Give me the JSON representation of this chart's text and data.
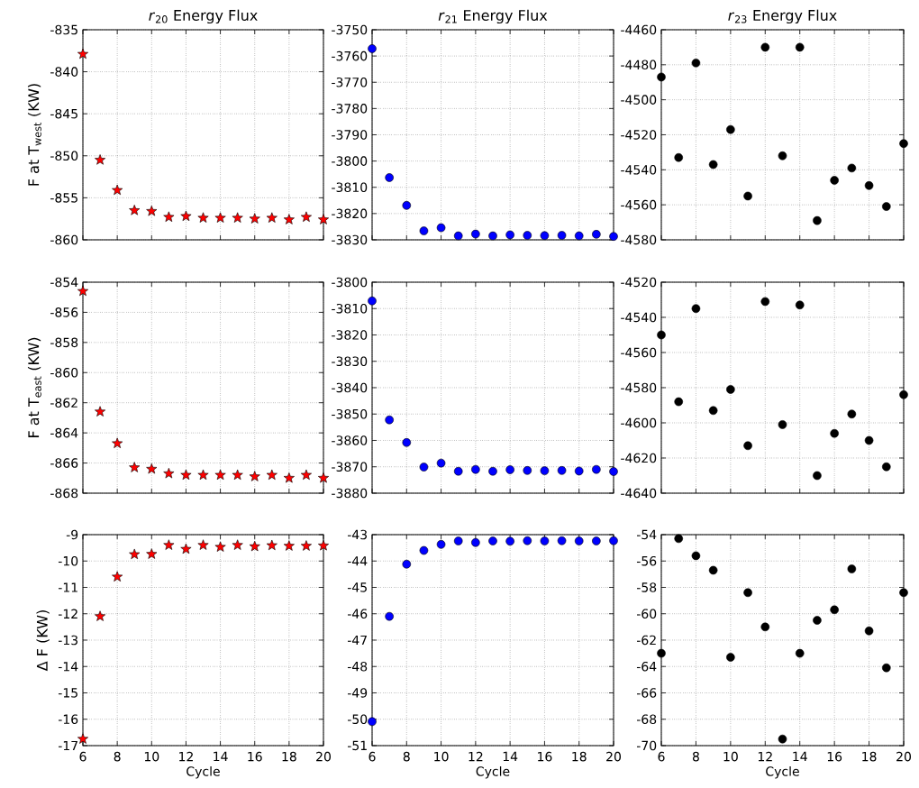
{
  "chart_data": [
    {
      "type": "scatter",
      "title": "*r*$_{20}$ Energy Flux",
      "ylabel": "F at T$_{west}$ (KW)",
      "x": [
        6,
        7,
        8,
        9,
        10,
        11,
        12,
        13,
        14,
        15,
        16,
        17,
        18,
        19,
        20
      ],
      "values": [
        -837.9,
        -850.5,
        -854.1,
        -856.5,
        -856.6,
        -857.3,
        -857.2,
        -857.4,
        -857.4,
        -857.4,
        -857.5,
        -857.4,
        -857.6,
        -857.3,
        -857.6
      ],
      "color": "#ff0000",
      "marker": "star",
      "xlim": [
        6,
        20
      ],
      "xticks": [
        6,
        8,
        10,
        12,
        14,
        16,
        18,
        20
      ],
      "ylim": [
        -860,
        -835
      ],
      "yticks": [
        -860,
        -855,
        -850,
        -845,
        -840,
        -835
      ],
      "grid": true,
      "tick_labels": "y"
    },
    {
      "type": "scatter",
      "title": "*r*$_{21}$ Energy Flux",
      "x": [
        6,
        7,
        8,
        9,
        10,
        11,
        12,
        13,
        14,
        15,
        16,
        17,
        18,
        19,
        20
      ],
      "values": [
        -3757.2,
        -3806.3,
        -3816.9,
        -3826.6,
        -3825.4,
        -3828.5,
        -3827.8,
        -3828.5,
        -3828.1,
        -3828.3,
        -3828.4,
        -3828.3,
        -3828.5,
        -3827.9,
        -3828.7
      ],
      "color": "#0000ff",
      "marker": "circle",
      "xlim": [
        6,
        20
      ],
      "xticks": [
        6,
        8,
        10,
        12,
        14,
        16,
        18,
        20
      ],
      "ylim": [
        -3830,
        -3750
      ],
      "yticks": [
        -3830,
        -3820,
        -3810,
        -3800,
        -3790,
        -3780,
        -3770,
        -3760,
        -3750
      ],
      "grid": true,
      "tick_labels": "y"
    },
    {
      "type": "scatter",
      "title": "*r*$_{23}$ Energy Flux",
      "x": [
        6,
        7,
        8,
        9,
        10,
        11,
        12,
        13,
        14,
        15,
        16,
        17,
        18,
        19,
        20
      ],
      "values": [
        -4487,
        -4533,
        -4479,
        -4537,
        -4517,
        -4555,
        -4470,
        -4532,
        -4470,
        -4569,
        -4546,
        -4539,
        -4549,
        -4561,
        -4525
      ],
      "color": "#000000",
      "marker": "circle",
      "xlim": [
        6,
        20
      ],
      "xticks": [
        6,
        8,
        10,
        12,
        14,
        16,
        18,
        20
      ],
      "ylim": [
        -4580,
        -4460
      ],
      "yticks": [
        -4580,
        -4560,
        -4540,
        -4520,
        -4500,
        -4480,
        -4460
      ],
      "grid": true,
      "tick_labels": "y"
    },
    {
      "type": "scatter",
      "ylabel": "F at T$_{east}$ (KW)",
      "x": [
        6,
        7,
        8,
        9,
        10,
        11,
        12,
        13,
        14,
        15,
        16,
        17,
        18,
        19,
        20
      ],
      "values": [
        -854.6,
        -862.6,
        -864.7,
        -866.3,
        -866.4,
        -866.7,
        -866.8,
        -866.8,
        -866.8,
        -866.8,
        -866.9,
        -866.8,
        -867.0,
        -866.8,
        -867.0
      ],
      "color": "#ff0000",
      "marker": "star",
      "xlim": [
        6,
        20
      ],
      "xticks": [
        6,
        8,
        10,
        12,
        14,
        16,
        18,
        20
      ],
      "ylim": [
        -868,
        -854
      ],
      "yticks": [
        -868,
        -866,
        -864,
        -862,
        -860,
        -858,
        -856,
        -854
      ],
      "grid": true,
      "tick_labels": "y"
    },
    {
      "type": "scatter",
      "x": [
        6,
        7,
        8,
        9,
        10,
        11,
        12,
        13,
        14,
        15,
        16,
        17,
        18,
        19,
        20
      ],
      "values": [
        -3807.1,
        -3852.2,
        -3860.8,
        -3870.1,
        -3868.6,
        -3871.7,
        -3871.0,
        -3871.7,
        -3871.1,
        -3871.4,
        -3871.5,
        -3871.4,
        -3871.6,
        -3871.0,
        -3871.8
      ],
      "color": "#0000ff",
      "marker": "circle",
      "xlim": [
        6,
        20
      ],
      "xticks": [
        6,
        8,
        10,
        12,
        14,
        16,
        18,
        20
      ],
      "ylim": [
        -3880,
        -3800
      ],
      "yticks": [
        -3880,
        -3870,
        -3860,
        -3850,
        -3840,
        -3830,
        -3820,
        -3810,
        -3800
      ],
      "grid": true,
      "tick_labels": "y"
    },
    {
      "type": "scatter",
      "x": [
        6,
        7,
        8,
        9,
        10,
        11,
        12,
        13,
        14,
        15,
        16,
        17,
        18,
        19,
        20
      ],
      "values": [
        -4550,
        -4588,
        -4535,
        -4593,
        -4581,
        -4613,
        -4531,
        -4601,
        -4533,
        -4630,
        -4606,
        -4595,
        -4610,
        -4625,
        -4584
      ],
      "color": "#000000",
      "marker": "circle",
      "xlim": [
        6,
        20
      ],
      "xticks": [
        6,
        8,
        10,
        12,
        14,
        16,
        18,
        20
      ],
      "ylim": [
        -4640,
        -4520
      ],
      "yticks": [
        -4640,
        -4620,
        -4600,
        -4580,
        -4560,
        -4540,
        -4520
      ],
      "grid": true,
      "tick_labels": "y"
    },
    {
      "type": "scatter",
      "ylabel": "Δ F (KW)",
      "xlabel": "Cycle",
      "x": [
        6,
        7,
        8,
        9,
        10,
        11,
        12,
        13,
        14,
        15,
        16,
        17,
        18,
        19,
        20
      ],
      "values": [
        -16.75,
        -12.1,
        -10.6,
        -9.75,
        -9.74,
        -9.4,
        -9.55,
        -9.4,
        -9.47,
        -9.4,
        -9.45,
        -9.41,
        -9.43,
        -9.43,
        -9.42
      ],
      "color": "#ff0000",
      "marker": "star",
      "xlim": [
        6,
        20
      ],
      "xticks": [
        6,
        8,
        10,
        12,
        14,
        16,
        18,
        20
      ],
      "ylim": [
        -17,
        -9
      ],
      "yticks": [
        -17,
        -16,
        -15,
        -14,
        -13,
        -12,
        -11,
        -10,
        -9
      ],
      "grid": true
    },
    {
      "type": "scatter",
      "xlabel": "Cycle",
      "x": [
        6,
        7,
        8,
        9,
        10,
        11,
        12,
        13,
        14,
        15,
        16,
        17,
        18,
        19,
        20
      ],
      "values": [
        -50.09,
        -46.1,
        -44.12,
        -43.6,
        -43.37,
        -43.24,
        -43.3,
        -43.24,
        -43.25,
        -43.23,
        -43.24,
        -43.23,
        -43.24,
        -43.24,
        -43.23
      ],
      "color": "#0000ff",
      "marker": "circle",
      "xlim": [
        6,
        20
      ],
      "xticks": [
        6,
        8,
        10,
        12,
        14,
        16,
        18,
        20
      ],
      "ylim": [
        -51,
        -43
      ],
      "yticks": [
        -51,
        -50,
        -49,
        -48,
        -47,
        -46,
        -45,
        -44,
        -43
      ],
      "grid": true
    },
    {
      "type": "scatter",
      "xlabel": "Cycle",
      "x": [
        6,
        7,
        8,
        9,
        10,
        11,
        12,
        13,
        14,
        15,
        16,
        17,
        18,
        19,
        20
      ],
      "values": [
        -63.0,
        -54.3,
        -55.6,
        -56.7,
        -63.3,
        -58.4,
        -61.0,
        -69.5,
        -63.0,
        -60.5,
        -59.7,
        -56.6,
        -61.3,
        -64.1,
        -58.4
      ],
      "color": "#000000",
      "marker": "circle",
      "xlim": [
        6,
        20
      ],
      "xticks": [
        6,
        8,
        10,
        12,
        14,
        16,
        18,
        20
      ],
      "ylim": [
        -70,
        -54
      ],
      "yticks": [
        -70,
        -68,
        -66,
        -64,
        -62,
        -60,
        -58,
        -56,
        -54
      ],
      "grid": true
    }
  ]
}
